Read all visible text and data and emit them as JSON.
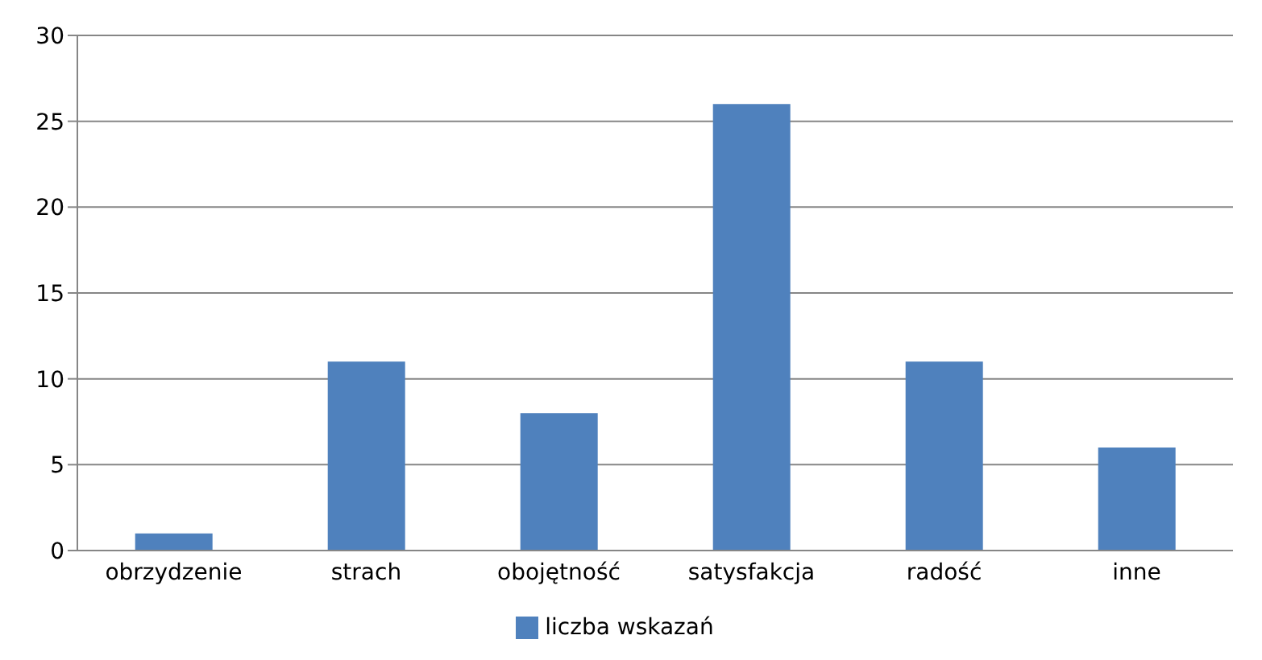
{
  "chart_data": {
    "type": "bar",
    "categories": [
      "obrzydzenie",
      "strach",
      "obojętność",
      "satysfakcja",
      "radość",
      "inne"
    ],
    "series": [
      {
        "name": "liczba wskazań",
        "color": "#4f81bd",
        "values": [
          1,
          11,
          8,
          26,
          11,
          6
        ]
      }
    ],
    "ylim": [
      0,
      30
    ],
    "yticks": [
      0,
      5,
      10,
      15,
      20,
      25,
      30
    ],
    "grid": "y",
    "legend": "bottom"
  }
}
